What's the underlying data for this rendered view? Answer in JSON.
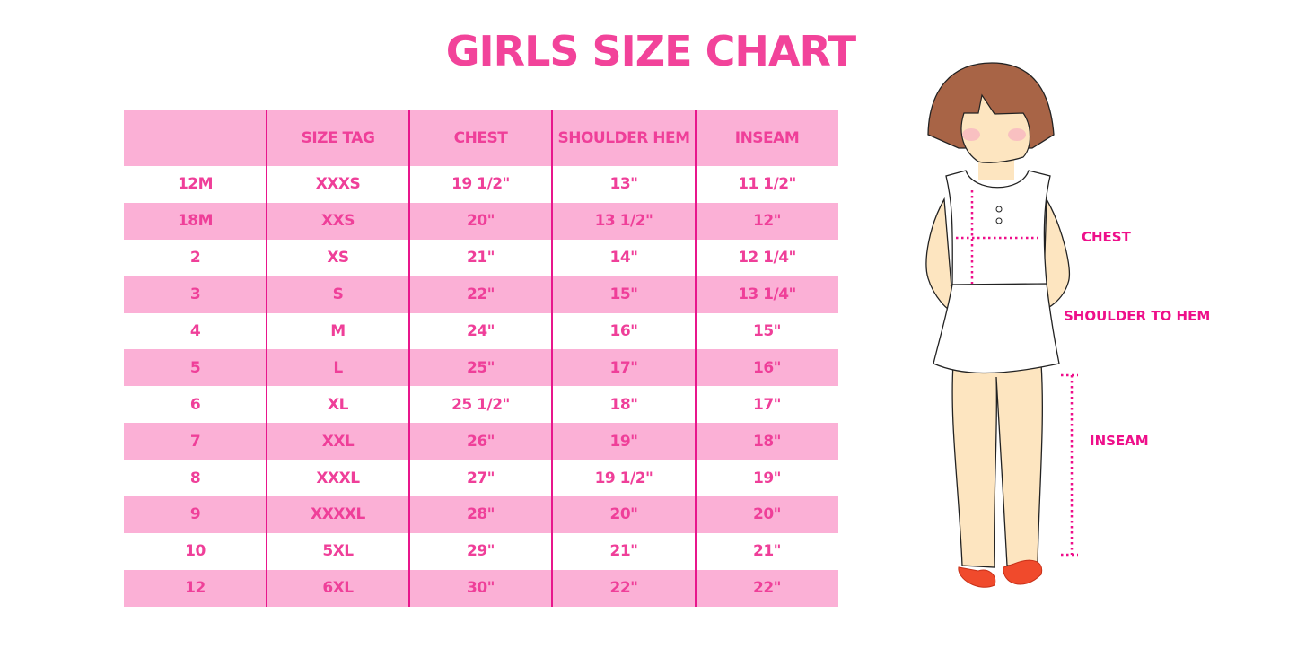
{
  "title": "GIRLS SIZE CHART",
  "table": {
    "headers": [
      "",
      "SIZE TAG",
      "CHEST",
      "SHOULDER HEM",
      "INSEAM"
    ],
    "rows": [
      [
        "12M",
        "XXXS",
        "19 1/2\"",
        "13\"",
        "11 1/2\""
      ],
      [
        "18M",
        "XXS",
        "20\"",
        "13 1/2\"",
        "12\""
      ],
      [
        "2",
        "XS",
        "21\"",
        "14\"",
        "12 1/4\""
      ],
      [
        "3",
        "S",
        "22\"",
        "15\"",
        "13 1/4\""
      ],
      [
        "4",
        "M",
        "24\"",
        "16\"",
        "15\""
      ],
      [
        "5",
        "L",
        "25\"",
        "17\"",
        "16\""
      ],
      [
        "6",
        "XL",
        "25 1/2\"",
        "18\"",
        "17\""
      ],
      [
        "7",
        "XXL",
        "26\"",
        "19\"",
        "18\""
      ],
      [
        "8",
        "XXXL",
        "27\"",
        "19 1/2\"",
        "19\""
      ],
      [
        "9",
        "XXXXL",
        "28\"",
        "20\"",
        "20\""
      ],
      [
        "10",
        "5XL",
        "29\"",
        "21\"",
        "21\""
      ],
      [
        "12",
        "6XL",
        "30\"",
        "22\"",
        "22\""
      ]
    ]
  },
  "illustration": {
    "labels": {
      "chest": "CHEST",
      "shoulder_to_hem": "SHOULDER TO HEM",
      "inseam": "INSEAM"
    }
  },
  "colors": {
    "title": "#f2439a",
    "row_pink": "#fbb0d6",
    "text": "#ef3f99",
    "divider": "#e8168c",
    "measure": "#ee0f8a"
  }
}
